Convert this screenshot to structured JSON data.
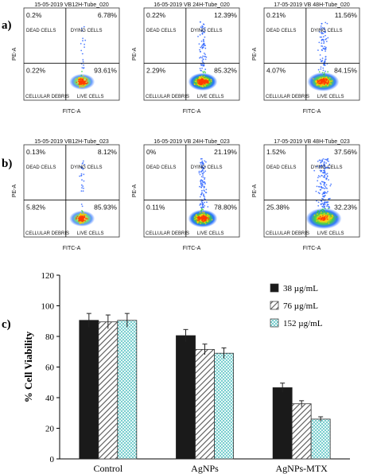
{
  "row_labels": [
    "a)",
    "b)",
    "c)"
  ],
  "flow_panels": [
    {
      "title": "15-05-2019 VB12H-Tube_020",
      "q_ul": "0.2%",
      "q_ur": "6.78%",
      "q_ll": "0.22%",
      "q_lr": "93.61%",
      "dead": "DEAD CELLS",
      "dying": "DYING CELLS",
      "debris": "CELLULAR DEBRIS",
      "live": "LIVE CELLS",
      "xlabel": "FITC-A",
      "ylabel": "PE-A",
      "density": 0.35,
      "spread": 0.5,
      "upper": 0.15
    },
    {
      "title": "16-05-2019 VB 24H-Tube_020",
      "q_ul": "0.22%",
      "q_ur": "12.39%",
      "q_ll": "2.29%",
      "q_lr": "85.32%",
      "dead": "DEAD CELLS",
      "dying": "DYING CELLS",
      "debris": "CELLULAR DEBRIS",
      "live": "LIVE CELLS",
      "xlabel": "FITC-A",
      "ylabel": "PE-A",
      "density": 1.0,
      "spread": 0.8,
      "upper": 0.35
    },
    {
      "title": "17-05-2019 VB 48H-Tube_020",
      "q_ul": "0.21%",
      "q_ur": "11.56%",
      "q_ll": "4.07%",
      "q_lr": "84.15%",
      "dead": "DEAD CELLS",
      "dying": "DYING CELLS",
      "debris": "CELLULAR DEBRIS",
      "live": "LIVE CELLS",
      "xlabel": "FITC-A",
      "ylabel": "PE-A",
      "density": 0.8,
      "spread": 1.0,
      "upper": 0.4
    },
    {
      "title": "15-05-2019 VB12H-Tube_023",
      "q_ul": "0.13%",
      "q_ur": "8.12%",
      "q_ll": "5.82%",
      "q_lr": "85.93%",
      "dead": "DEAD CELLS",
      "dying": "DYING CELLS",
      "debris": "CELLULAR DEBRIS",
      "live": "LIVE CELLS",
      "xlabel": "FITC-A",
      "ylabel": "PE-A",
      "density": 0.35,
      "spread": 0.5,
      "upper": 0.15
    },
    {
      "title": "16-05-2019 VB 24H-Tube_023",
      "q_ul": "0%",
      "q_ur": "21.19%",
      "q_ll": "0.11%",
      "q_lr": "78.80%",
      "dead": "DEAD CELLS",
      "dying": "DYING CELLS",
      "debris": "CELLULAR DEBRIS",
      "live": "LIVE CELLS",
      "xlabel": "FITC-A",
      "ylabel": "PE-A",
      "density": 1.0,
      "spread": 0.8,
      "upper": 0.5
    },
    {
      "title": "17-05-2019 VB 48H-Tube_023",
      "q_ul": "1.52%",
      "q_ur": "37.56%",
      "q_ll": "25.38%",
      "q_lr": "32.23%",
      "dead": "DEAD CELLS",
      "dying": "DYING CELLS",
      "debris": "CELLULAR DEBRIS",
      "live": "LIVE CELLS",
      "xlabel": "FITC-A",
      "ylabel": "PE-A",
      "density": 0.9,
      "spread": 1.3,
      "upper": 0.8
    }
  ],
  "chart_data": {
    "type": "bar",
    "categories": [
      "Control",
      "AgNPs",
      "AgNPs-MTX"
    ],
    "series": [
      {
        "name": "38 µg/mL",
        "values": [
          90.5,
          80.5,
          46.5
        ],
        "errors": [
          4.5,
          4.0,
          3.0
        ],
        "color": "#1a1a1a",
        "pattern": "solid"
      },
      {
        "name": "76 µg/mL",
        "values": [
          89.5,
          71.5,
          36.0
        ],
        "errors": [
          4.5,
          3.5,
          2.0
        ],
        "color": "#8c8c8c",
        "pattern": "hatch"
      },
      {
        "name": "152 µg/mL",
        "values": [
          90.5,
          69.0,
          26.0
        ],
        "errors": [
          4.5,
          3.5,
          1.5
        ],
        "color": "#2fb3b3",
        "pattern": "dots"
      }
    ],
    "ylabel": "% Cell Viability",
    "xlabel": "",
    "ylim": [
      0,
      120
    ],
    "yticks": [
      "0",
      "20",
      "40",
      "60",
      "80",
      "100",
      "120"
    ],
    "legend_position": "top-right",
    "grid": false
  }
}
